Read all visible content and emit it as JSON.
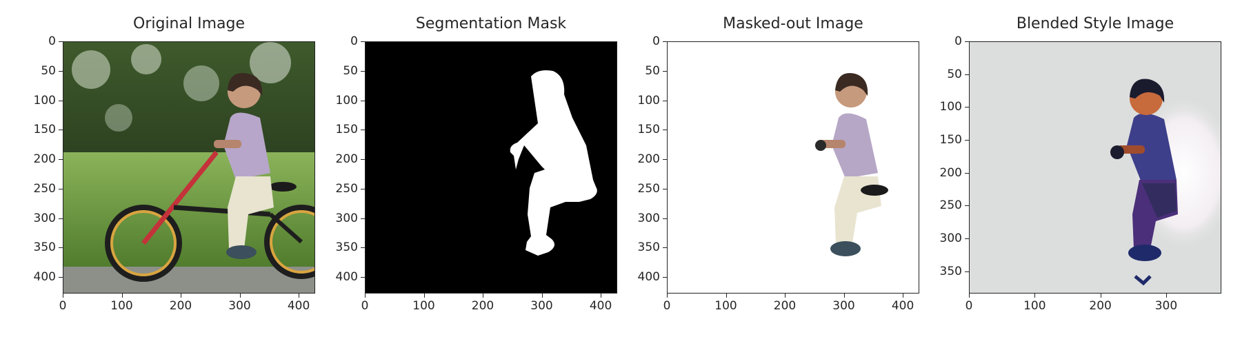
{
  "panels": [
    {
      "title": "Original Image",
      "content": "photo",
      "y_ticks": [
        "0",
        "50",
        "100",
        "150",
        "200",
        "250",
        "300",
        "350",
        "400"
      ],
      "x_ticks": [
        "0",
        "100",
        "200",
        "300",
        "400"
      ],
      "extent": 428
    },
    {
      "title": "Segmentation Mask",
      "content": "mask",
      "y_ticks": [
        "0",
        "50",
        "100",
        "150",
        "200",
        "250",
        "300",
        "350",
        "400"
      ],
      "x_ticks": [
        "0",
        "100",
        "200",
        "300",
        "400"
      ],
      "extent": 428
    },
    {
      "title": "Masked-out Image",
      "content": "masked",
      "y_ticks": [
        "0",
        "50",
        "100",
        "150",
        "200",
        "250",
        "300",
        "350",
        "400"
      ],
      "x_ticks": [
        "0",
        "100",
        "200",
        "300",
        "400"
      ],
      "extent": 428
    },
    {
      "title": "Blended Style Image",
      "content": "blended",
      "y_ticks": [
        "0",
        "50",
        "100",
        "150",
        "200",
        "250",
        "300",
        "350"
      ],
      "x_ticks": [
        "0",
        "100",
        "200",
        "300"
      ],
      "extent": 384
    }
  ],
  "colors": {
    "mask_bg": "#000000",
    "mask_fg": "#ffffff",
    "blend_bg": "#dcdedd"
  }
}
